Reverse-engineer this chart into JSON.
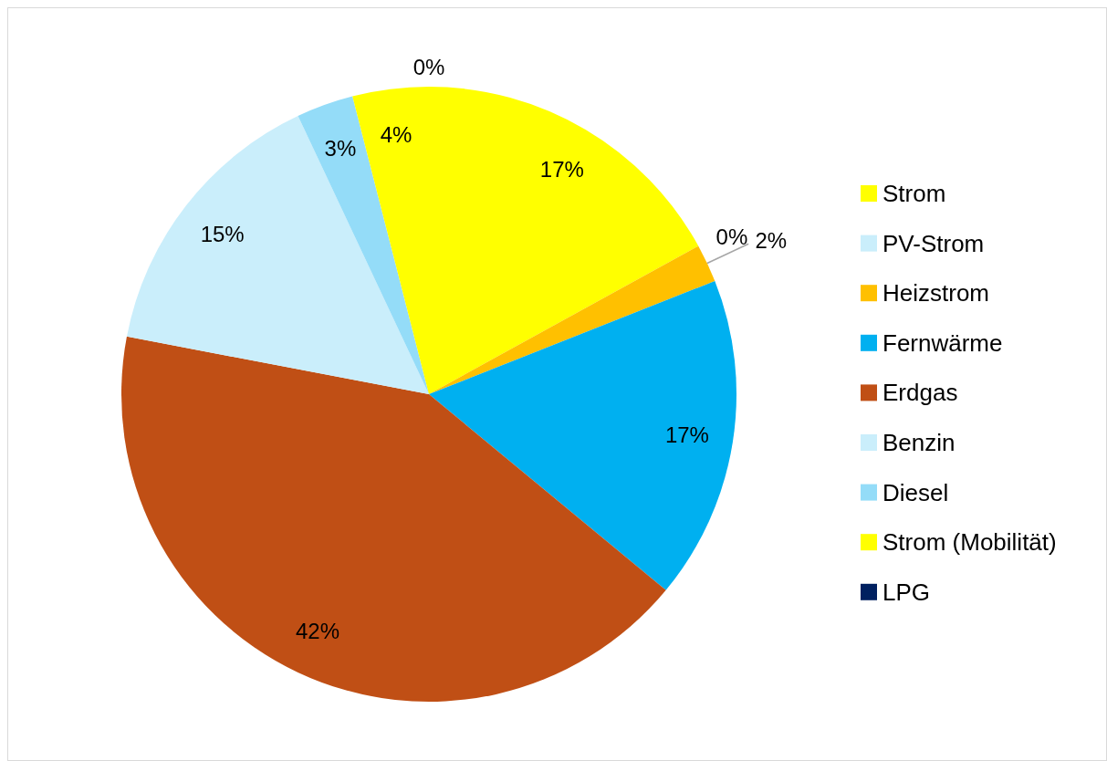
{
  "chart_data": {
    "type": "pie",
    "categories": [
      "Strom",
      "PV-Strom",
      "Heizstrom",
      "Fernwärme",
      "Erdgas",
      "Benzin",
      "Diesel",
      "Strom (Mobilität)",
      "LPG"
    ],
    "values": [
      17,
      0,
      2,
      17,
      42,
      15,
      3,
      4,
      0
    ],
    "colors": [
      "#ffff00",
      "#caeefb",
      "#ffc000",
      "#00b0f0",
      "#c04f15",
      "#caeefb",
      "#94dcf8",
      "#ffff00",
      "#002060"
    ],
    "value_labels": [
      "17%",
      "0%",
      "2%",
      "17%",
      "42%",
      "15%",
      "3%",
      "4%",
      "0%"
    ],
    "legend": "right"
  }
}
